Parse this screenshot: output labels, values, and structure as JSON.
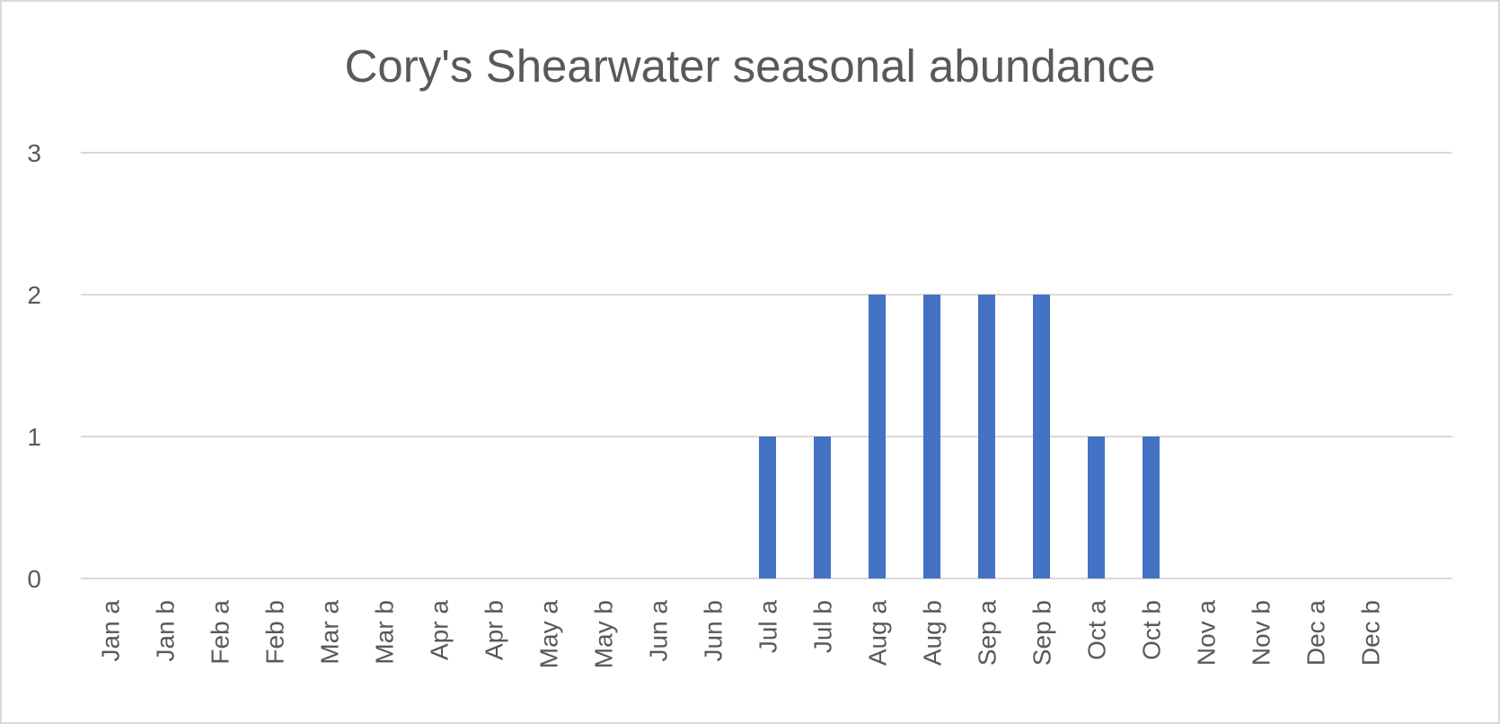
{
  "chart_data": {
    "type": "bar",
    "title": "Cory's Shearwater seasonal abundance",
    "xlabel": "",
    "ylabel": "",
    "categories": [
      "Jan a",
      "Jan b",
      "Feb a",
      "Feb b",
      "Mar a",
      "Mar b",
      "Apr a",
      "Apr b",
      "May a",
      "May b",
      "Jun a",
      "Jun b",
      "Jul a",
      "Jul b",
      "Aug a",
      "Aug b",
      "Sep a",
      "Sep b",
      "Oct a",
      "Oct b",
      "Nov a",
      "Nov b",
      "Dec a",
      "Dec b"
    ],
    "values": [
      0,
      0,
      0,
      0,
      0,
      0,
      0,
      0,
      0,
      0,
      0,
      0,
      1,
      1,
      2,
      2,
      2,
      2,
      1,
      1,
      0,
      0,
      0,
      0
    ],
    "ylim": [
      0,
      3
    ],
    "yticks": [
      0,
      1,
      2,
      3
    ],
    "grid": true,
    "legend": "none",
    "bar_color": "#4472C4"
  }
}
